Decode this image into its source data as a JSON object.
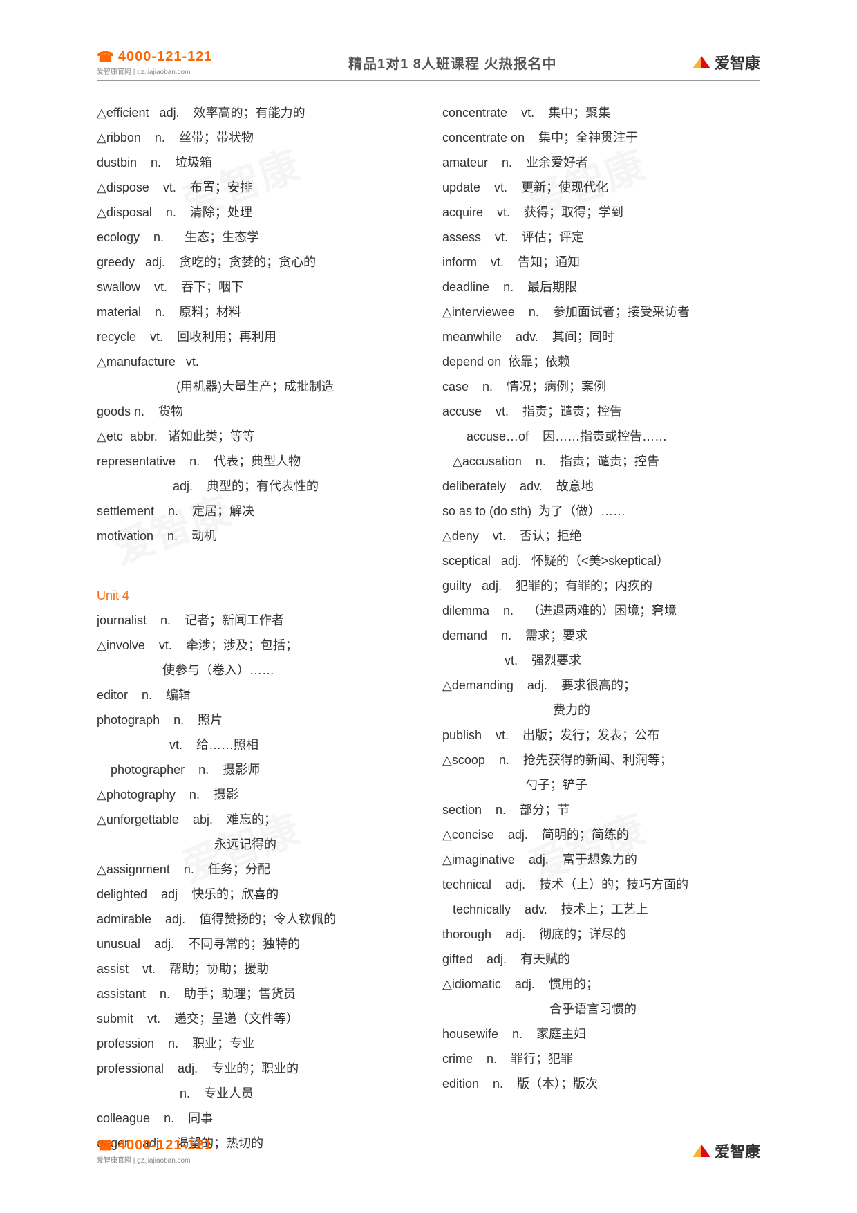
{
  "header": {
    "phone": "4000-121-121",
    "phone_sub": "爱智康官网 | gz.jiajiaoban.com",
    "title": "精品1对1  8人班课程 火热报名中",
    "brand": "爱智康"
  },
  "watermark": "爱智康",
  "unit4_heading": "Unit 4",
  "left": [
    "△efficient   adj.    效率高的；有能力的",
    "△ribbon    n.    丝带；带状物",
    "dustbin    n.    垃圾箱",
    "△dispose    vt.    布置；安排",
    "△disposal    n.    清除；处理",
    "ecology    n.      生态；生态学",
    "greedy   adj.    贪吃的；贪婪的；贪心的",
    "swallow    vt.    吞下；咽下",
    "material    n.    原料；材料",
    "recycle    vt.    回收利用；再利用",
    "△manufacture   vt.",
    "                       (用机器)大量生产；成批制造",
    "goods n.    货物",
    "△etc  abbr.   诸如此类；等等",
    "representative    n.    代表；典型人物",
    "                      adj.    典型的；有代表性的",
    "settlement    n.    定居；解决",
    "motivation    n.    动机",
    "",
    "__UNIT4__",
    "journalist    n.    记者；新闻工作者",
    "△involve    vt.    牵涉；涉及；包括；",
    "                   使参与（卷入）……",
    "editor    n.    编辑",
    "photograph    n.    照片",
    "                     vt.    给……照相",
    "    photographer    n.    摄影师",
    "△photography    n.    摄影",
    "△unforgettable    abj.    难忘的；",
    "                                  永远记得的",
    "△assignment    n.    任务；分配",
    "delighted    adj    快乐的；欣喜的",
    "admirable    adj.    值得赞扬的；令人钦佩的",
    "unusual    adj.    不同寻常的；独特的",
    "assist    vt.    帮助；协助；援助",
    "assistant    n.    助手；助理；售货员",
    "submit    vt.    递交；呈递（文件等）",
    "profession    n.    职业；专业",
    "professional    adj.    专业的；职业的",
    "                        n.    专业人员",
    "colleague    n.    同事",
    "eager    adj.    渴望的；热切的"
  ],
  "right": [
    "concentrate    vt.    集中；聚集",
    "concentrate on    集中；全神贯注于",
    "amateur    n.    业余爱好者",
    "update    vt.    更新；使现代化",
    "acquire    vt.    获得；取得；学到",
    "assess    vt.    评估；评定",
    "inform    vt.    告知；通知",
    "deadline    n.    最后期限",
    "△interviewee    n.    参加面试者；接受采访者",
    "meanwhile    adv.    其间；同时",
    "depend on  依靠；依赖",
    "case    n.    情况；病例；案例",
    "accuse    vt.    指责；谴责；控告",
    "       accuse…of    因……指责或控告……",
    "   △accusation    n.    指责；谴责；控告",
    "deliberately    adv.    故意地",
    "so as to (do sth)  为了（做）……",
    "△deny    vt.    否认；拒绝",
    "sceptical   adj.   怀疑的（<美>skeptical）",
    "guilty   adj.    犯罪的；有罪的；内疚的",
    "dilemma    n.    （进退两难的）困境；窘境",
    "demand    n.    需求；要求",
    "                  vt.    强烈要求",
    "△demanding    adj.    要求很高的；",
    "                                费力的",
    "publish    vt.    出版；发行；发表；公布",
    "△scoop    n.    抢先获得的新闻、利润等；",
    "                        勺子；铲子",
    "section    n.    部分；节",
    "△concise    adj.    简明的；简练的",
    "△imaginative    adj.    富于想象力的",
    "technical    adj.    技术（上）的；技巧方面的",
    "   technically    adv.    技术上；工艺上",
    "thorough    adj.    彻底的；详尽的",
    "gifted    adj.    有天赋的",
    "△idiomatic    adj.    惯用的；",
    "                               合乎语言习惯的",
    "housewife    n.    家庭主妇",
    "crime    n.    罪行；犯罪",
    "edition    n.    版（本）；版次"
  ]
}
